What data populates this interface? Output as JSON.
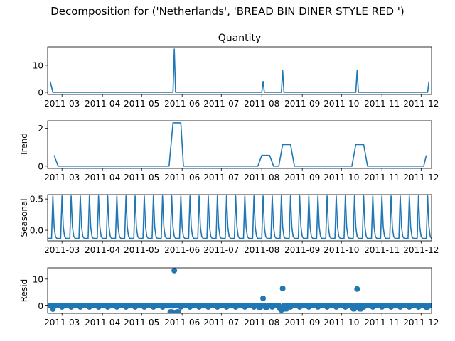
{
  "suptitle": "Decomposition for ('Netherlands', 'BREAD BIN DINER STYLE RED ')",
  "colors": {
    "line": "#1f77b4",
    "marker": "#1f77b4",
    "axis": "#000000",
    "background": "#ffffff"
  },
  "chart_data": [
    {
      "type": "line",
      "title": "Quantity",
      "ylabel": "",
      "x_tick_labels": [
        "2011-03",
        "2011-04",
        "2011-05",
        "2011-06",
        "2011-07",
        "2011-08",
        "2011-09",
        "2011-10",
        "2011-11",
        "2011-12"
      ],
      "y_ticks": [
        0,
        10
      ],
      "ylim": [
        -0.8,
        16.8
      ],
      "grid": false,
      "series": [
        {
          "x": [
            "2011-02-20",
            "2011-02-22",
            "2011-05-25",
            "2011-05-26",
            "2011-05-27",
            "2011-08-01",
            "2011-08-02",
            "2011-08-03",
            "2011-08-16",
            "2011-08-17",
            "2011-08-18",
            "2011-10-12",
            "2011-10-13",
            "2011-10-14",
            "2011-12-06",
            "2011-12-07"
          ],
          "y": [
            4,
            0,
            0,
            16,
            0,
            0,
            4,
            0,
            0,
            8,
            0,
            0,
            8,
            0,
            0,
            4
          ]
        }
      ]
    },
    {
      "type": "line",
      "title": "",
      "ylabel": "Trend",
      "x_tick_labels": [
        "2011-03",
        "2011-04",
        "2011-05",
        "2011-06",
        "2011-07",
        "2011-08",
        "2011-09",
        "2011-10",
        "2011-11",
        "2011-12"
      ],
      "y_ticks": [
        0,
        2
      ],
      "ylim": [
        -0.12,
        2.4
      ],
      "grid": false,
      "series": [
        {
          "x": [
            "2011-02-23",
            "2011-02-26",
            "2011-05-22",
            "2011-05-25",
            "2011-05-31",
            "2011-06-02",
            "2011-07-29",
            "2011-08-01",
            "2011-08-07",
            "2011-08-10",
            "2011-08-14",
            "2011-08-17",
            "2011-08-23",
            "2011-08-26",
            "2011-10-09",
            "2011-10-12",
            "2011-10-18",
            "2011-10-21",
            "2011-12-03",
            "2011-12-05"
          ],
          "y": [
            0.57,
            0,
            0,
            2.29,
            2.29,
            0,
            0,
            0.57,
            0.57,
            0,
            0,
            1.14,
            1.14,
            0,
            0,
            1.14,
            1.14,
            0,
            0,
            0.57
          ]
        }
      ]
    },
    {
      "type": "line",
      "title": "",
      "ylabel": "Seasonal",
      "x_tick_labels": [
        "2011-03",
        "2011-04",
        "2011-05",
        "2011-06",
        "2011-07",
        "2011-08",
        "2011-09",
        "2011-10",
        "2011-11",
        "2011-12"
      ],
      "y_ticks": [
        0.0,
        0.5
      ],
      "ylim": [
        -0.17,
        0.57
      ],
      "grid": false,
      "periodic": {
        "period_days": 7,
        "first_peak": "2011-02-22",
        "peak": 0.55,
        "trough": -0.13,
        "pattern": [
          0.55,
          0.05,
          -0.1,
          -0.13,
          -0.13,
          -0.13,
          -0.13
        ]
      }
    },
    {
      "type": "scatter",
      "title": "",
      "ylabel": "Resid",
      "x_tick_labels": [
        "2011-03",
        "2011-04",
        "2011-05",
        "2011-06",
        "2011-07",
        "2011-08",
        "2011-09",
        "2011-10",
        "2011-11",
        "2011-12"
      ],
      "y_ticks": [
        0,
        10
      ],
      "ylim": [
        -2.8,
        14.2
      ],
      "grid": false,
      "baseline_resid": [
        -0.4,
        0.0,
        0.1,
        0.13,
        0.13,
        0.13,
        0.13
      ],
      "points": [
        {
          "x": "2011-02-22",
          "y": -1.2
        },
        {
          "x": "2011-05-23",
          "y": -2.3
        },
        {
          "x": "2011-05-24",
          "y": -2.3
        },
        {
          "x": "2011-05-26",
          "y": 13.2
        },
        {
          "x": "2011-05-28",
          "y": -2.3
        },
        {
          "x": "2011-05-29",
          "y": -2.3
        },
        {
          "x": "2011-07-30",
          "y": -0.5
        },
        {
          "x": "2011-07-31",
          "y": -0.5
        },
        {
          "x": "2011-08-02",
          "y": 2.8
        },
        {
          "x": "2011-08-04",
          "y": -0.5
        },
        {
          "x": "2011-08-05",
          "y": -0.5
        },
        {
          "x": "2011-08-15",
          "y": -1.1
        },
        {
          "x": "2011-08-16",
          "y": -1.6
        },
        {
          "x": "2011-08-17",
          "y": 6.5
        },
        {
          "x": "2011-08-19",
          "y": -1.1
        },
        {
          "x": "2011-08-20",
          "y": -1.1
        },
        {
          "x": "2011-10-10",
          "y": -1.1
        },
        {
          "x": "2011-10-11",
          "y": -1.1
        },
        {
          "x": "2011-10-13",
          "y": 6.3
        },
        {
          "x": "2011-10-15",
          "y": -1.1
        },
        {
          "x": "2011-10-16",
          "y": -1.1
        },
        {
          "x": "2011-12-05",
          "y": -0.5
        }
      ]
    }
  ]
}
